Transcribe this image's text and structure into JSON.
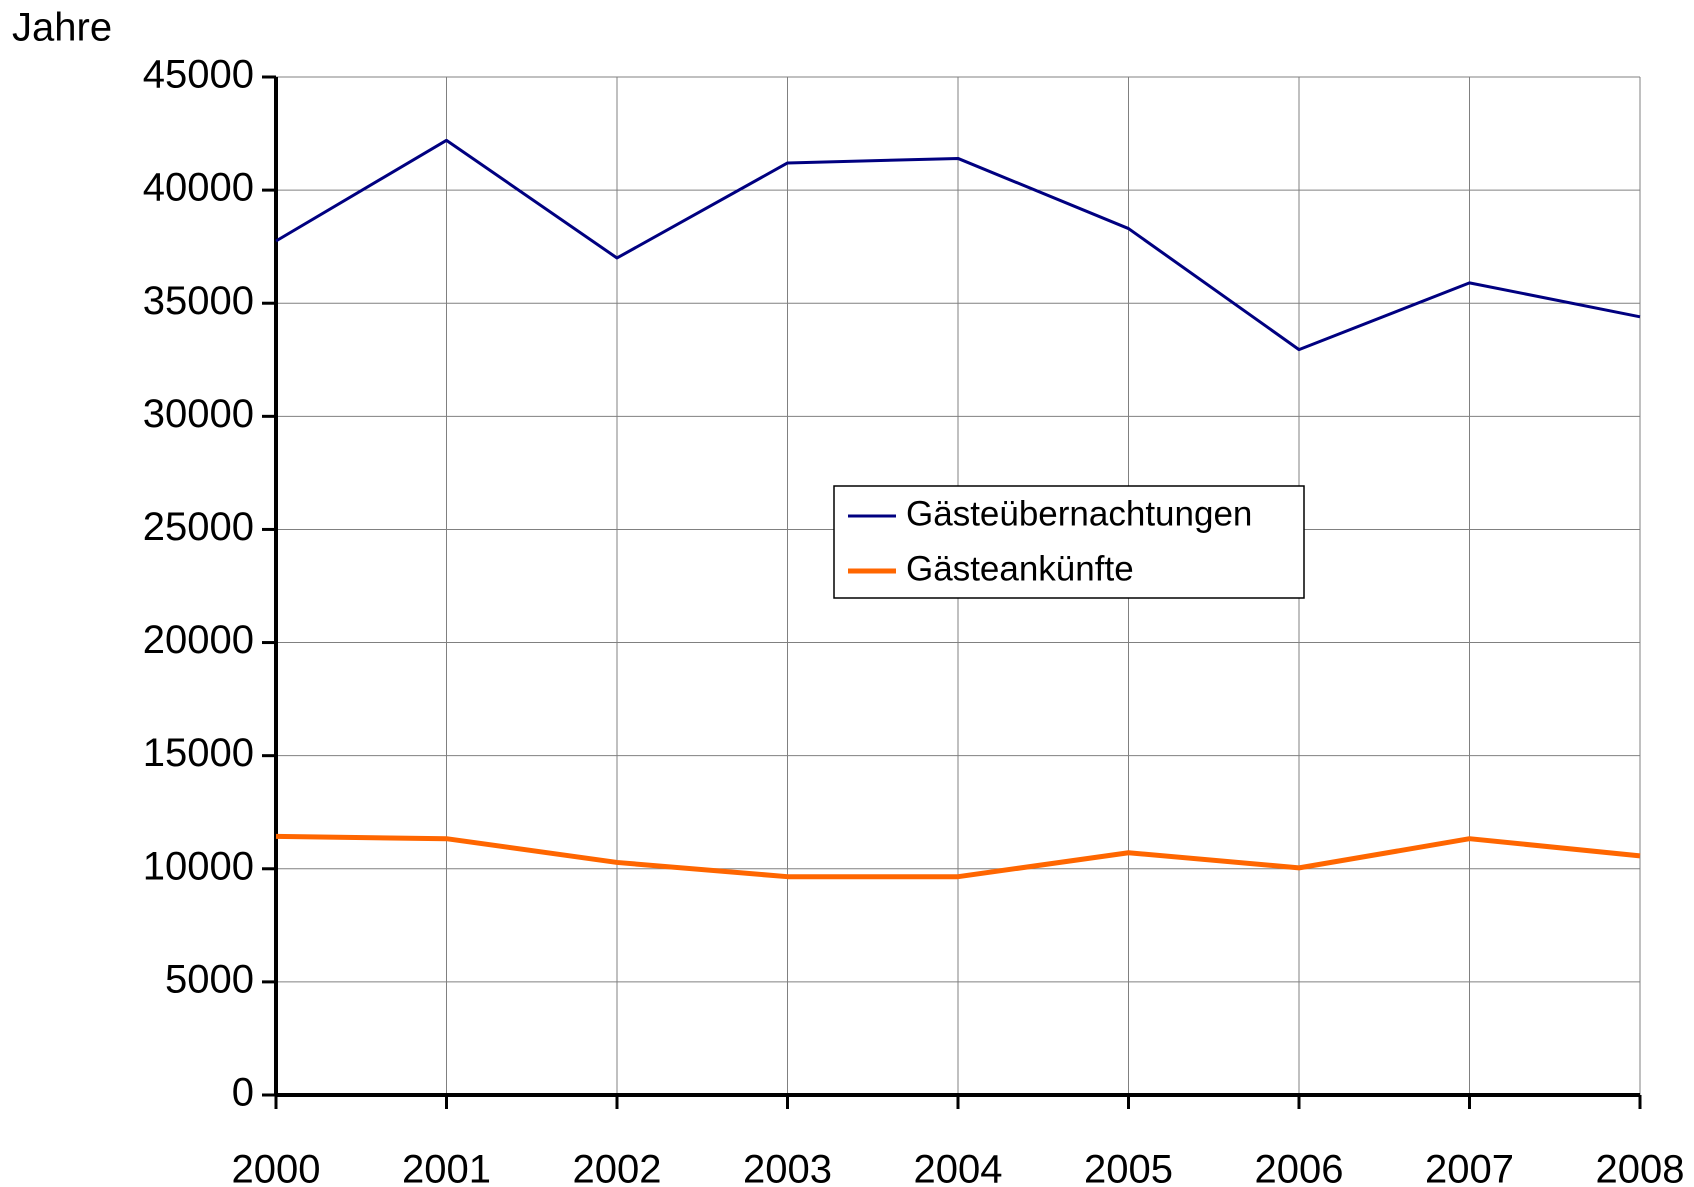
{
  "chart_data": {
    "type": "line",
    "y_label": "Jahre",
    "categories": [
      "2000",
      "2001",
      "2002",
      "2003",
      "2004",
      "2005",
      "2006",
      "2007",
      "2008"
    ],
    "series": [
      {
        "name": "Gästeübernachtungen",
        "color": "#000080",
        "values": [
          37750,
          42200,
          37000,
          41200,
          41400,
          38300,
          32950,
          35900,
          34400
        ]
      },
      {
        "name": "Gästeankünfte",
        "color": "#ff6600",
        "values": [
          11430,
          11330,
          10280,
          9650,
          9650,
          10710,
          10040,
          11330,
          10570
        ]
      }
    ],
    "ylim": [
      0,
      45000
    ],
    "yticks": [
      0,
      5000,
      10000,
      15000,
      20000,
      25000,
      30000,
      35000,
      40000,
      45000
    ],
    "grid": true,
    "legend": "center"
  }
}
